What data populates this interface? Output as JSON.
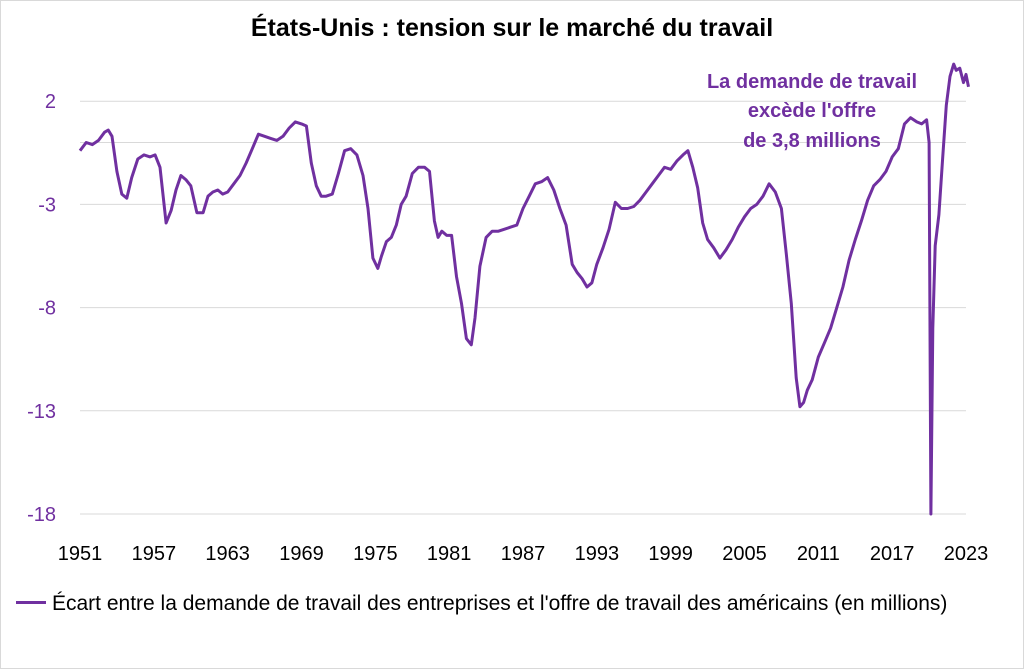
{
  "chart_data": {
    "type": "line",
    "title": "États-Unis : tension sur le marché du travail",
    "y_ticks": [
      "2",
      "-3",
      "-8",
      "-13",
      "-18"
    ],
    "y_tick_values": [
      2,
      -3,
      -8,
      -13,
      -18
    ],
    "x_ticks": [
      "1951",
      "1957",
      "1963",
      "1969",
      "1975",
      "1981",
      "1987",
      "1993",
      "1999",
      "2005",
      "2011",
      "2017",
      "2023"
    ],
    "x_tick_values": [
      1951,
      1957,
      1963,
      1969,
      1975,
      1981,
      1987,
      1993,
      1999,
      2005,
      2011,
      2017,
      2023
    ],
    "xlim": [
      1951,
      2023
    ],
    "ylim": [
      -18,
      3.9
    ],
    "grid": "horizontal",
    "legend_position": "bottom-left",
    "annotation": [
      "La demande de travail",
      "excède l'offre",
      "de 3,8 millions"
    ],
    "series": [
      {
        "name": "Écart entre la demande de travail des entreprises et l'offre de travail des américains (en millions)",
        "color": "#7030a0",
        "x": [
          1951.0,
          1951.5,
          1952.0,
          1952.5,
          1953.0,
          1953.3,
          1953.6,
          1954.0,
          1954.4,
          1954.8,
          1955.2,
          1955.7,
          1956.2,
          1956.7,
          1957.1,
          1957.5,
          1958.0,
          1958.4,
          1958.8,
          1959.2,
          1959.6,
          1960.0,
          1960.5,
          1961.0,
          1961.4,
          1961.8,
          1962.2,
          1962.6,
          1963.0,
          1963.5,
          1964.0,
          1964.5,
          1965.0,
          1965.5,
          1966.0,
          1966.5,
          1967.0,
          1967.5,
          1968.0,
          1968.5,
          1969.0,
          1969.4,
          1969.8,
          1970.2,
          1970.6,
          1971.0,
          1971.5,
          1972.0,
          1972.5,
          1973.0,
          1973.5,
          1974.0,
          1974.4,
          1974.8,
          1975.2,
          1975.5,
          1975.9,
          1976.3,
          1976.7,
          1977.1,
          1977.5,
          1978.0,
          1978.5,
          1979.0,
          1979.4,
          1979.8,
          1980.1,
          1980.4,
          1980.8,
          1981.2,
          1981.6,
          1982.0,
          1982.4,
          1982.8,
          1983.1,
          1983.5,
          1984.0,
          1984.5,
          1985.0,
          1985.5,
          1986.0,
          1986.5,
          1987.0,
          1987.5,
          1988.0,
          1988.5,
          1989.0,
          1989.5,
          1990.0,
          1990.5,
          1991.0,
          1991.4,
          1991.8,
          1992.2,
          1992.6,
          1993.0,
          1993.5,
          1994.0,
          1994.5,
          1995.0,
          1995.5,
          1996.0,
          1996.5,
          1997.0,
          1997.5,
          1998.0,
          1998.5,
          1999.0,
          1999.5,
          2000.0,
          2000.4,
          2000.8,
          2001.2,
          2001.6,
          2002.0,
          2002.5,
          2003.0,
          2003.5,
          2004.0,
          2004.5,
          2005.0,
          2005.5,
          2006.0,
          2006.5,
          2007.0,
          2007.5,
          2008.0,
          2008.4,
          2008.8,
          2009.2,
          2009.5,
          2009.8,
          2010.1,
          2010.5,
          2011.0,
          2011.5,
          2012.0,
          2012.5,
          2013.0,
          2013.5,
          2014.0,
          2014.5,
          2015.0,
          2015.5,
          2016.0,
          2016.5,
          2017.0,
          2017.5,
          2018.0,
          2018.5,
          2019.0,
          2019.4,
          2019.8,
          2020.0,
          2020.15,
          2020.3,
          2020.5,
          2020.8,
          2021.1,
          2021.4,
          2021.7,
          2022.0,
          2022.2,
          2022.5,
          2022.8,
          2023.0,
          2023.2
        ],
        "y": [
          -0.4,
          0.0,
          -0.1,
          0.1,
          0.5,
          0.6,
          0.3,
          -1.4,
          -2.5,
          -2.7,
          -1.7,
          -0.8,
          -0.6,
          -0.7,
          -0.6,
          -1.2,
          -3.9,
          -3.3,
          -2.3,
          -1.6,
          -1.8,
          -2.1,
          -3.4,
          -3.4,
          -2.6,
          -2.4,
          -2.3,
          -2.5,
          -2.4,
          -2.0,
          -1.6,
          -1.0,
          -0.3,
          0.4,
          0.3,
          0.2,
          0.1,
          0.3,
          0.7,
          1.0,
          0.9,
          0.8,
          -1.0,
          -2.1,
          -2.6,
          -2.6,
          -2.5,
          -1.5,
          -0.4,
          -0.3,
          -0.6,
          -1.6,
          -3.2,
          -5.6,
          -6.1,
          -5.5,
          -4.8,
          -4.6,
          -4.0,
          -3.0,
          -2.6,
          -1.5,
          -1.2,
          -1.2,
          -1.4,
          -3.8,
          -4.6,
          -4.3,
          -4.5,
          -4.5,
          -6.5,
          -7.8,
          -9.5,
          -9.8,
          -8.5,
          -6.0,
          -4.6,
          -4.3,
          -4.3,
          -4.2,
          -4.1,
          -4.0,
          -3.2,
          -2.6,
          -2.0,
          -1.9,
          -1.7,
          -2.3,
          -3.2,
          -4.0,
          -5.9,
          -6.3,
          -6.6,
          -7.0,
          -6.8,
          -5.9,
          -5.1,
          -4.2,
          -2.9,
          -3.2,
          -3.2,
          -3.1,
          -2.8,
          -2.4,
          -2.0,
          -1.6,
          -1.2,
          -1.3,
          -0.9,
          -0.6,
          -0.4,
          -1.2,
          -2.2,
          -3.9,
          -4.7,
          -5.1,
          -5.6,
          -5.2,
          -4.7,
          -4.1,
          -3.6,
          -3.2,
          -3.0,
          -2.6,
          -2.0,
          -2.4,
          -3.2,
          -5.4,
          -7.8,
          -11.4,
          -12.8,
          -12.6,
          -12.0,
          -11.5,
          -10.4,
          -9.7,
          -9.0,
          -8.0,
          -7.0,
          -5.7,
          -4.7,
          -3.8,
          -2.8,
          -2.1,
          -1.8,
          -1.4,
          -0.7,
          -0.3,
          0.9,
          1.2,
          1.0,
          0.9,
          1.1,
          0.0,
          -18.0,
          -9.0,
          -5.0,
          -3.5,
          -0.8,
          1.8,
          3.2,
          3.8,
          3.5,
          3.6,
          2.9,
          3.3,
          2.7
        ]
      }
    ]
  },
  "legend": {
    "label": "Écart entre la demande de travail des entreprises et l'offre de travail des américains (en millions)"
  }
}
